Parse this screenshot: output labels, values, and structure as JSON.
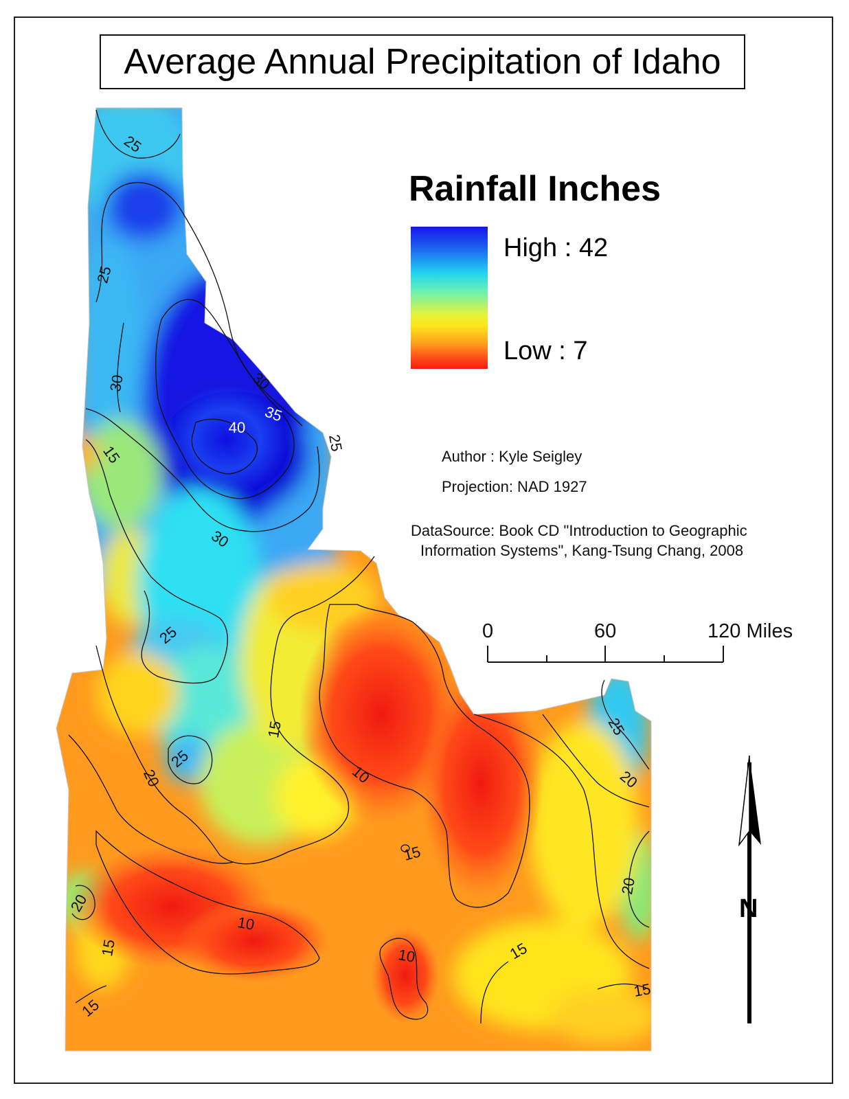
{
  "title": "Average Annual Precipitation of Idaho",
  "legend": {
    "title": "Rainfall Inches",
    "high_label": "High : 42",
    "low_label": "Low : 7",
    "colors": [
      "#1a16e8",
      "#22d6f0",
      "#e6f23a",
      "#ffa020",
      "#f41a12"
    ]
  },
  "credits": {
    "author": "Author : Kyle Seigley",
    "projection": "Projection: NAD 1927",
    "source_line1": "DataSource: Book CD \"Introduction to Geographic",
    "source_line2": "Information Systems\", Kang-Tsung Chang, 2008"
  },
  "scale_bar": {
    "label_0": "0",
    "label_mid": "60",
    "label_end": "120 Miles"
  },
  "north_arrow": {
    "label": "N"
  },
  "contour_labels": [
    "25",
    "25",
    "30",
    "30",
    "35",
    "40",
    "25",
    "15",
    "30",
    "25",
    "15",
    "25",
    "20",
    "10",
    "25",
    "20",
    "15",
    "20",
    "15",
    "10",
    "10",
    "15",
    "15",
    "15",
    "20"
  ]
}
